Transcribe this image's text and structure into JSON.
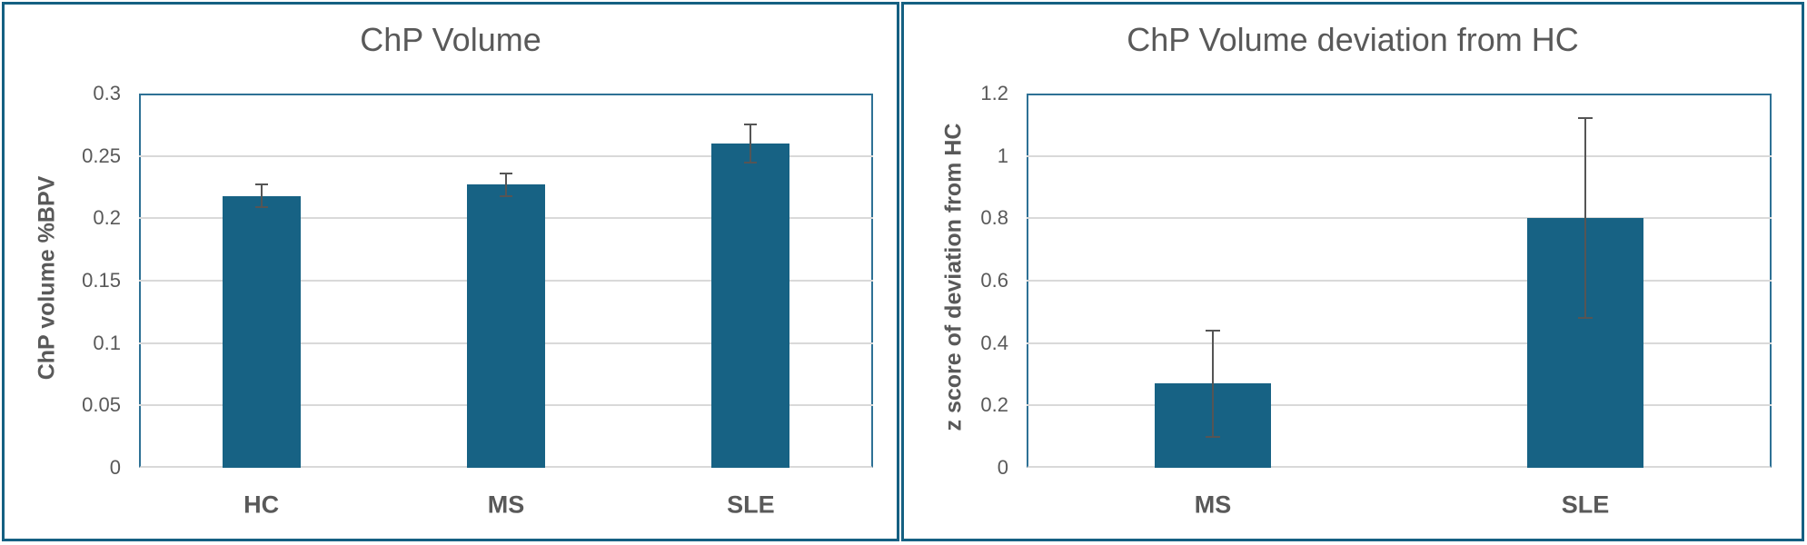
{
  "colors": {
    "bar": "#176284",
    "panel_border": "#156082",
    "plot_frame": "#2E7195",
    "gridline": "#D9D9D9",
    "text": "#595959",
    "error_bar": "#555555",
    "background": "#FFFFFF"
  },
  "chart_data": [
    {
      "type": "bar",
      "title": "ChP Volume",
      "ylabel": "ChP volume %BPV",
      "xlabel": "",
      "categories": [
        "HC",
        "MS",
        "SLE"
      ],
      "values": [
        0.218,
        0.227,
        0.26
      ],
      "errors": [
        0.009,
        0.009,
        0.015
      ],
      "ylim": [
        0,
        0.3
      ],
      "yticks": [
        0,
        0.05,
        0.1,
        0.15,
        0.2,
        0.25,
        0.3
      ],
      "ytick_labels": [
        "0",
        "0.05",
        "0.1",
        "0.15",
        "0.2",
        "0.25",
        "0.3"
      ],
      "grid": true,
      "legend": false
    },
    {
      "type": "bar",
      "title": "ChP Volume deviation from HC",
      "ylabel": "z score of deviation from HC",
      "xlabel": "",
      "categories": [
        "MS",
        "SLE"
      ],
      "values": [
        0.27,
        0.8
      ],
      "errors": [
        0.17,
        0.32
      ],
      "ylim": [
        0,
        1.2
      ],
      "yticks": [
        0,
        0.2,
        0.4,
        0.6,
        0.8,
        1,
        1.2
      ],
      "ytick_labels": [
        "0",
        "0.2",
        "0.4",
        "0.6",
        "0.8",
        "1",
        "1.2"
      ],
      "grid": true,
      "legend": false
    }
  ]
}
